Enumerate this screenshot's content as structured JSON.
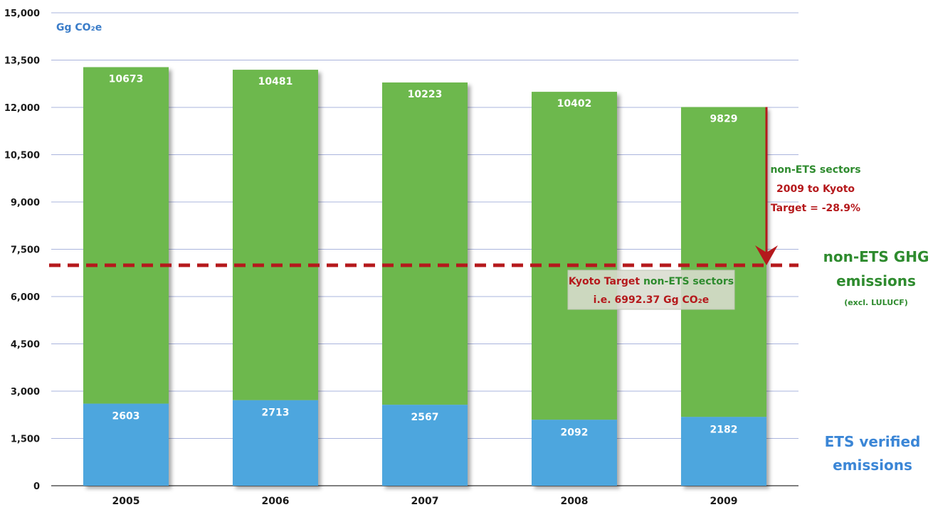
{
  "chart_data": {
    "type": "bar",
    "stacked": true,
    "categories": [
      "2005",
      "2006",
      "2007",
      "2008",
      "2009"
    ],
    "series": [
      {
        "name": "ETS verified emissions",
        "values": [
          2603,
          2713,
          2567,
          2092,
          2182
        ],
        "color": "#4ea6de"
      },
      {
        "name": "non-ETS GHG emissions",
        "values": [
          10673,
          10481,
          10223,
          10402,
          9829
        ],
        "color": "#6db84e"
      }
    ],
    "ylim": [
      0,
      15000
    ],
    "yticks": [
      "0",
      "1,500",
      "3,000",
      "4,500",
      "6,000",
      "7,500",
      "9,000",
      "10,500",
      "12,000",
      "13,500",
      "15,000"
    ],
    "ytick_values": [
      0,
      1500,
      3000,
      4500,
      6000,
      7500,
      9000,
      10500,
      12000,
      13500,
      15000
    ],
    "unit_label": "Gg CO₂e",
    "grid": true,
    "target_line": {
      "value": 6992.37,
      "color": "#b5191c",
      "style": "dashed"
    },
    "target_box": {
      "line1_red": "Kyoto Target",
      "line1_green": "non-ETS sectors",
      "line2": "i.e. 6992.37 Gg CO₂e"
    },
    "arrow_annotation": {
      "line1": "non-ETS sectors",
      "line2": "2009 to Kyoto",
      "line3": "Target = -28.9%"
    },
    "side_labels": {
      "non_ets_line1": "non-ETS GHG",
      "non_ets_line2": "emissions",
      "non_ets_note": "(excl. LULUCF)",
      "ets_line1": "ETS verified",
      "ets_line2": "emissions"
    },
    "colors": {
      "ets": "#4ea6de",
      "non_ets": "#6db84e",
      "target": "#b5191c",
      "unit": "#3b7dc9",
      "green_text": "#2e8b2e",
      "ets_text": "#3b86d6"
    }
  }
}
